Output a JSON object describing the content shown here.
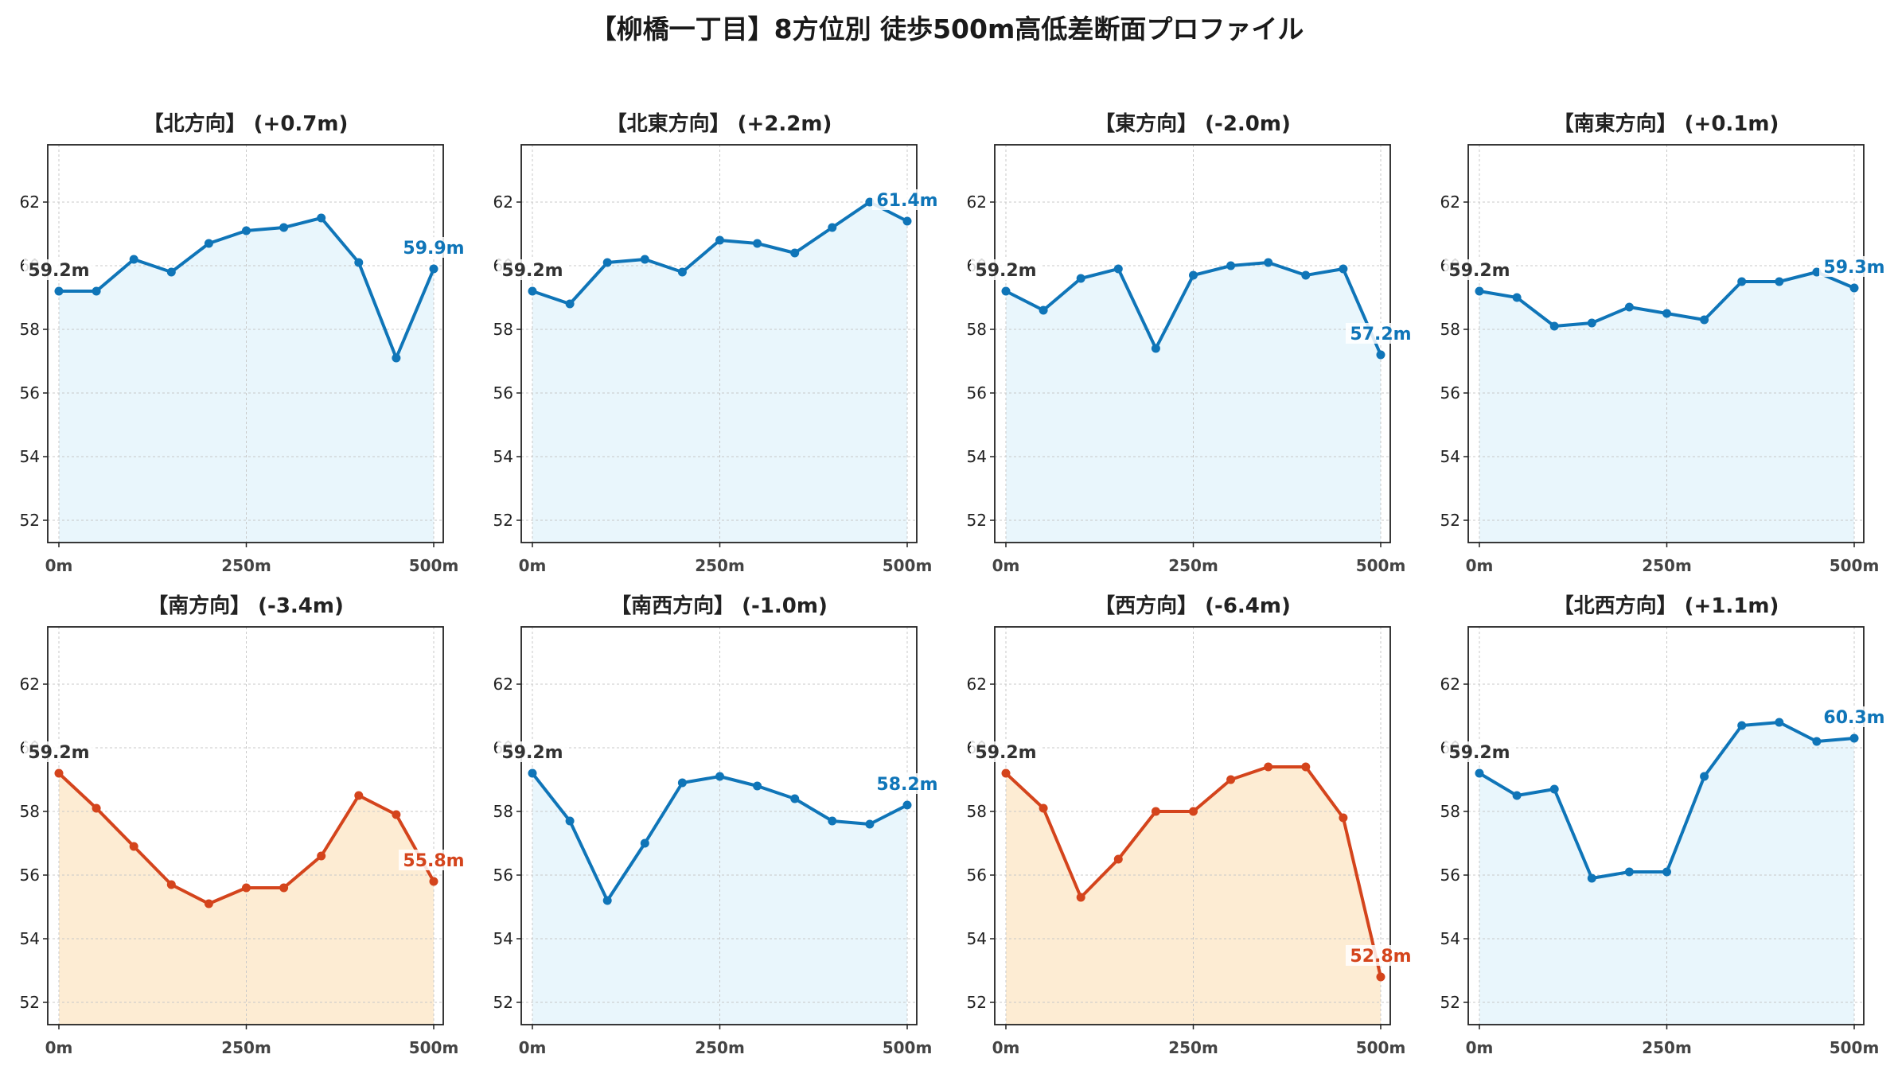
{
  "title": "【柳橋一丁目】8方位別 徒歩500m高低差断面プロファイル",
  "colors": {
    "up_line": "#0f75b8",
    "up_fill": "#e9f6fc",
    "down_line": "#d4441c",
    "down_fill": "#fdecd3",
    "grid": "#c8c8c8",
    "start_label": "#333333"
  },
  "chart_data": [
    {
      "type": "area",
      "title": "【北方向】 (+0.7m)",
      "x": [
        0,
        50,
        100,
        150,
        200,
        250,
        300,
        350,
        400,
        450,
        500
      ],
      "y": [
        59.2,
        59.2,
        60.2,
        59.8,
        60.7,
        61.1,
        61.2,
        61.5,
        60.1,
        57.1,
        59.9
      ],
      "start_label": "59.2m",
      "end_label": "59.9m",
      "trend": "up",
      "xticks": [
        "0m",
        "250m",
        "500m"
      ],
      "yticks": [
        52,
        54,
        56,
        58,
        60,
        62
      ],
      "ylim": [
        51.3,
        63.8
      ],
      "grid": true
    },
    {
      "type": "area",
      "title": "【北東方向】 (+2.2m)",
      "x": [
        0,
        50,
        100,
        150,
        200,
        250,
        300,
        350,
        400,
        450,
        500
      ],
      "y": [
        59.2,
        58.8,
        60.1,
        60.2,
        59.8,
        60.8,
        60.7,
        60.4,
        61.2,
        62.0,
        61.4
      ],
      "start_label": "59.2m",
      "end_label": "61.4m",
      "trend": "up",
      "xticks": [
        "0m",
        "250m",
        "500m"
      ],
      "yticks": [
        52,
        54,
        56,
        58,
        60,
        62
      ],
      "ylim": [
        51.3,
        63.8
      ],
      "grid": true
    },
    {
      "type": "area",
      "title": "【東方向】 (-2.0m)",
      "x": [
        0,
        50,
        100,
        150,
        200,
        250,
        300,
        350,
        400,
        450,
        500
      ],
      "y": [
        59.2,
        58.6,
        59.6,
        59.9,
        57.4,
        59.7,
        60.0,
        60.1,
        59.7,
        59.9,
        57.2
      ],
      "start_label": "59.2m",
      "end_label": "57.2m",
      "trend": "up",
      "xticks": [
        "0m",
        "250m",
        "500m"
      ],
      "yticks": [
        52,
        54,
        56,
        58,
        60,
        62
      ],
      "ylim": [
        51.3,
        63.8
      ],
      "grid": true
    },
    {
      "type": "area",
      "title": "【南東方向】 (+0.1m)",
      "x": [
        0,
        50,
        100,
        150,
        200,
        250,
        300,
        350,
        400,
        450,
        500
      ],
      "y": [
        59.2,
        59.0,
        58.1,
        58.2,
        58.7,
        58.5,
        58.3,
        59.5,
        59.5,
        59.8,
        59.3
      ],
      "start_label": "59.2m",
      "end_label": "59.3m",
      "trend": "up",
      "xticks": [
        "0m",
        "250m",
        "500m"
      ],
      "yticks": [
        52,
        54,
        56,
        58,
        60,
        62
      ],
      "ylim": [
        51.3,
        63.8
      ],
      "grid": true
    },
    {
      "type": "area",
      "title": "【南方向】 (-3.4m)",
      "x": [
        0,
        50,
        100,
        150,
        200,
        250,
        300,
        350,
        400,
        450,
        500
      ],
      "y": [
        59.2,
        58.1,
        56.9,
        55.7,
        55.1,
        55.6,
        55.6,
        56.6,
        58.5,
        57.9,
        55.8
      ],
      "start_label": "59.2m",
      "end_label": "55.8m",
      "trend": "down",
      "xticks": [
        "0m",
        "250m",
        "500m"
      ],
      "yticks": [
        52,
        54,
        56,
        58,
        60,
        62
      ],
      "ylim": [
        51.3,
        63.8
      ],
      "grid": true
    },
    {
      "type": "area",
      "title": "【南西方向】 (-1.0m)",
      "x": [
        0,
        50,
        100,
        150,
        200,
        250,
        300,
        350,
        400,
        450,
        500
      ],
      "y": [
        59.2,
        57.7,
        55.2,
        57.0,
        58.9,
        59.1,
        58.8,
        58.4,
        57.7,
        57.6,
        58.2
      ],
      "start_label": "59.2m",
      "end_label": "58.2m",
      "trend": "up",
      "xticks": [
        "0m",
        "250m",
        "500m"
      ],
      "yticks": [
        52,
        54,
        56,
        58,
        60,
        62
      ],
      "ylim": [
        51.3,
        63.8
      ],
      "grid": true
    },
    {
      "type": "area",
      "title": "【西方向】 (-6.4m)",
      "x": [
        0,
        50,
        100,
        150,
        200,
        250,
        300,
        350,
        400,
        450,
        500
      ],
      "y": [
        59.2,
        58.1,
        55.3,
        56.5,
        58.0,
        58.0,
        59.0,
        59.4,
        59.4,
        57.8,
        52.8
      ],
      "start_label": "59.2m",
      "end_label": "52.8m",
      "trend": "down",
      "xticks": [
        "0m",
        "250m",
        "500m"
      ],
      "yticks": [
        52,
        54,
        56,
        58,
        60,
        62
      ],
      "ylim": [
        51.3,
        63.8
      ],
      "grid": true
    },
    {
      "type": "area",
      "title": "【北西方向】 (+1.1m)",
      "x": [
        0,
        50,
        100,
        150,
        200,
        250,
        300,
        350,
        400,
        450,
        500
      ],
      "y": [
        59.2,
        58.5,
        58.7,
        55.9,
        56.1,
        56.1,
        59.1,
        60.7,
        60.8,
        60.2,
        60.3
      ],
      "start_label": "59.2m",
      "end_label": "60.3m",
      "trend": "up",
      "xticks": [
        "0m",
        "250m",
        "500m"
      ],
      "yticks": [
        52,
        54,
        56,
        58,
        60,
        62
      ],
      "ylim": [
        51.3,
        63.8
      ],
      "grid": true
    }
  ]
}
